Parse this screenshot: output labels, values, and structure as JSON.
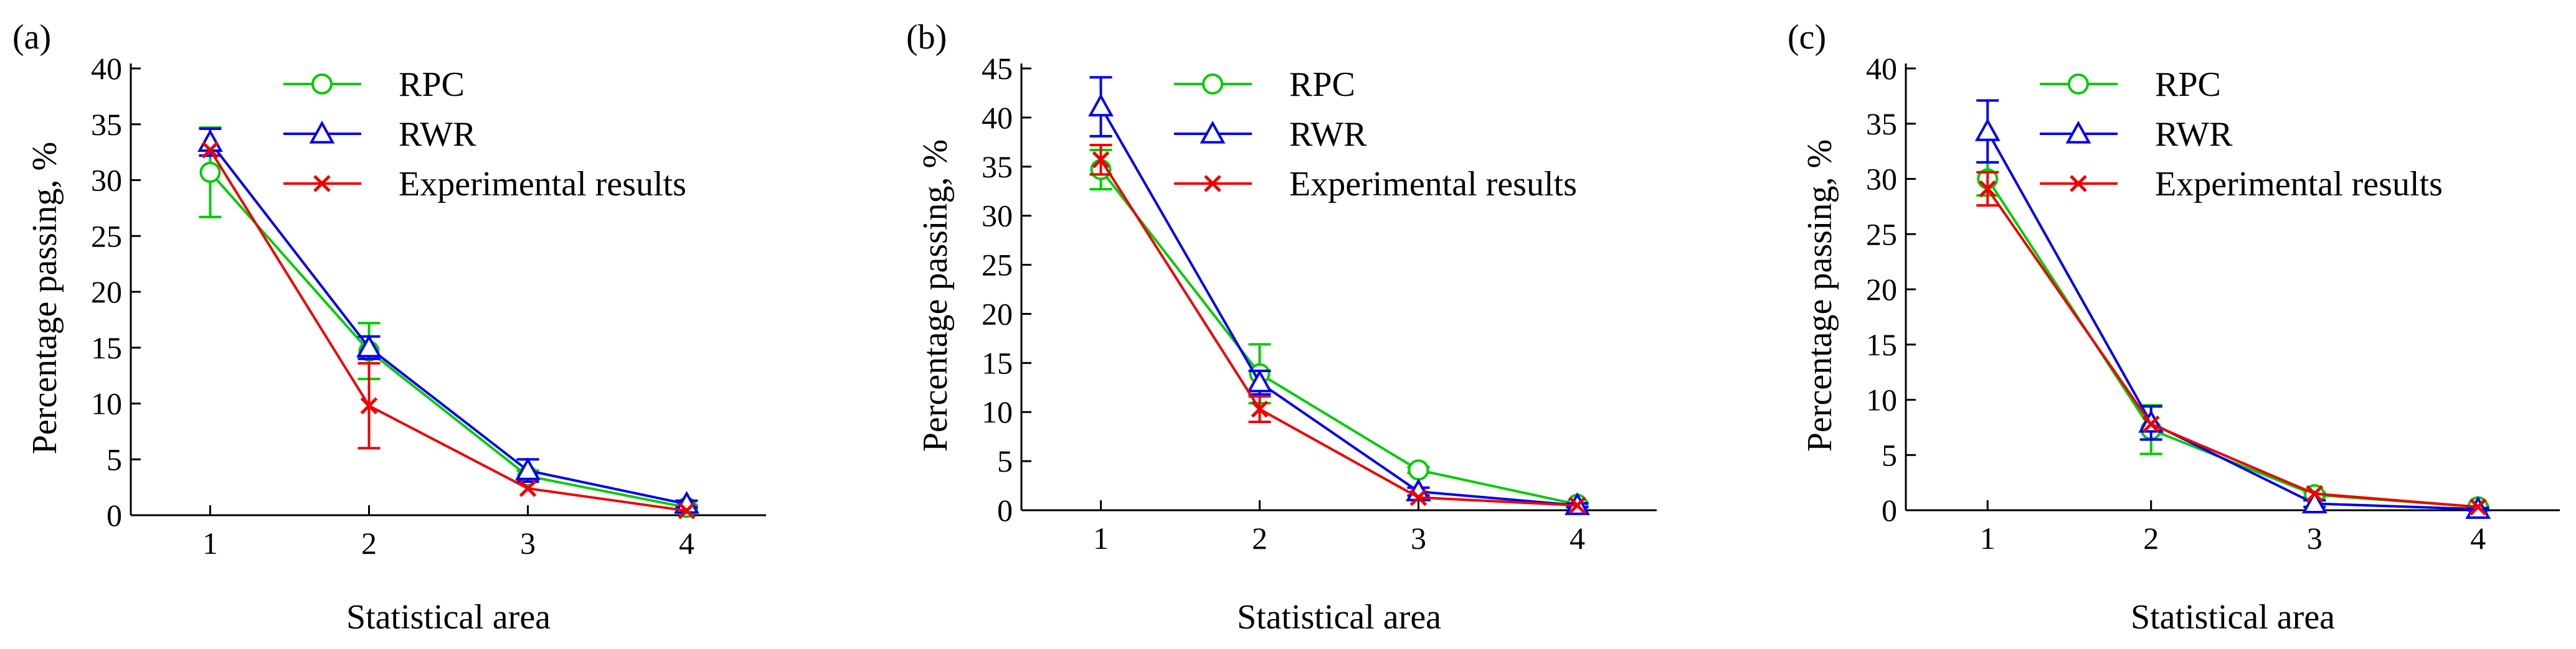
{
  "chart_data": [
    {
      "type": "line",
      "panel_label": "(a)",
      "xlabel": "Statistical area",
      "ylabel": "Percentage passing, %",
      "x": [
        1,
        2,
        3,
        4
      ],
      "xlim": [
        0.5,
        4.5
      ],
      "xticks": [
        1,
        2,
        3,
        4
      ],
      "ylim": [
        0,
        40
      ],
      "yticks": [
        0,
        5,
        10,
        15,
        20,
        25,
        30,
        35,
        40
      ],
      "grid": false,
      "legend_position": "top-center",
      "series": [
        {
          "name": "RPC",
          "color": "#00cc00",
          "marker": "circle",
          "values": [
            30.7,
            14.7,
            3.5,
            0.7
          ],
          "err": [
            4.0,
            2.5,
            0.5,
            0.2
          ]
        },
        {
          "name": "RWR",
          "color": "#0000ee",
          "marker": "triangle",
          "values": [
            33.4,
            15.0,
            4.0,
            1.0
          ],
          "err": [
            1.2,
            1.0,
            1.0,
            0.3
          ]
        },
        {
          "name": "Experimental results",
          "color": "#ee0000",
          "marker": "x",
          "values": [
            32.7,
            9.8,
            2.4,
            0.4
          ],
          "err": [
            0,
            3.8,
            0,
            0
          ]
        }
      ]
    },
    {
      "type": "line",
      "panel_label": "(b)",
      "xlabel": "Statistical area",
      "ylabel": "Percentage passing, %",
      "x": [
        1,
        2,
        3,
        4
      ],
      "xlim": [
        0.5,
        4.5
      ],
      "xticks": [
        1,
        2,
        3,
        4
      ],
      "ylim": [
        0,
        45
      ],
      "yticks": [
        0,
        5,
        10,
        15,
        20,
        25,
        30,
        35,
        40,
        45
      ],
      "grid": false,
      "legend_position": "top-center",
      "series": [
        {
          "name": "RPC",
          "color": "#00cc00",
          "marker": "circle",
          "values": [
            34.7,
            13.9,
            4.1,
            0.6
          ],
          "err": [
            2.0,
            3.0,
            0.3,
            0.2
          ]
        },
        {
          "name": "RWR",
          "color": "#0000ee",
          "marker": "triangle",
          "values": [
            41.1,
            13.0,
            1.9,
            0.5
          ],
          "err": [
            3.0,
            1.2,
            0.4,
            0.2
          ]
        },
        {
          "name": "Experimental results",
          "color": "#ee0000",
          "marker": "x",
          "values": [
            35.7,
            10.3,
            1.3,
            0.5
          ],
          "err": [
            1.5,
            1.3,
            0,
            0
          ]
        }
      ]
    },
    {
      "type": "line",
      "panel_label": "(c)",
      "xlabel": "Statistical area",
      "ylabel": "Percentage passing, %",
      "x": [
        1,
        2,
        3,
        4
      ],
      "xlim": [
        0.5,
        4.5
      ],
      "xticks": [
        1,
        2,
        3,
        4
      ],
      "ylim": [
        0,
        40
      ],
      "yticks": [
        0,
        5,
        10,
        15,
        20,
        25,
        30,
        35,
        40
      ],
      "grid": false,
      "legend_position": "top-center",
      "series": [
        {
          "name": "RPC",
          "color": "#00cc00",
          "marker": "circle",
          "values": [
            30.0,
            7.3,
            1.4,
            0.3
          ],
          "err": [
            1.5,
            2.2,
            0.2,
            0.1
          ]
        },
        {
          "name": "RWR",
          "color": "#0000ee",
          "marker": "triangle",
          "values": [
            34.3,
            7.9,
            0.6,
            0.1
          ],
          "err": [
            2.8,
            1.5,
            0.3,
            0.1
          ]
        },
        {
          "name": "Experimental results",
          "color": "#ee0000",
          "marker": "x",
          "values": [
            29.1,
            7.8,
            1.5,
            0.3
          ],
          "err": [
            1.5,
            0,
            0,
            0
          ]
        }
      ]
    }
  ]
}
